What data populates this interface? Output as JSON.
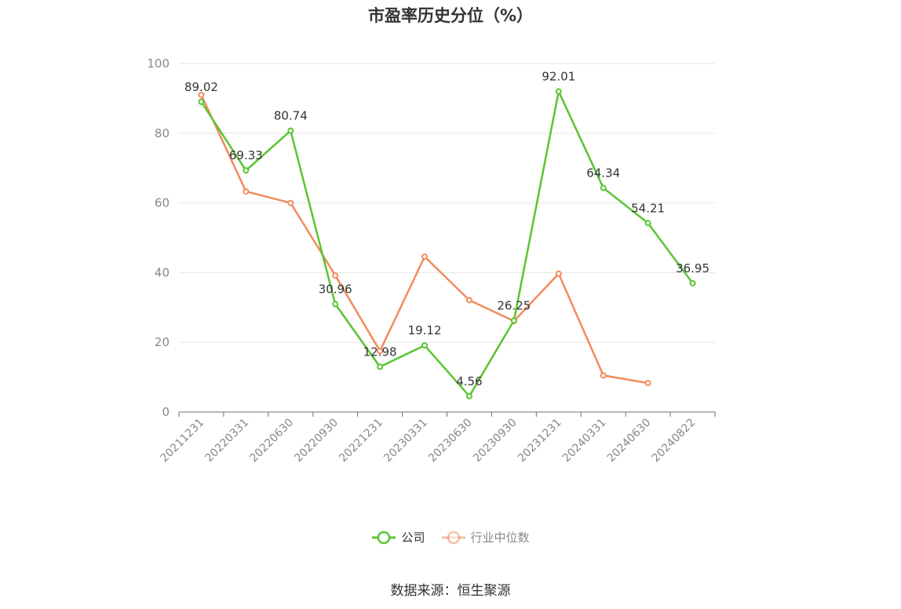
{
  "chart_data": {
    "type": "line",
    "title": "市盈率历史分位（%）",
    "categories": [
      "20211231",
      "20220331",
      "20220630",
      "20220930",
      "20221231",
      "20230331",
      "20230630",
      "20230930",
      "20231231",
      "20240331",
      "20240630",
      "20240822"
    ],
    "series": [
      {
        "name": "公司",
        "color": "#5ac530",
        "values": [
          89.02,
          69.33,
          80.74,
          30.96,
          12.98,
          19.12,
          4.56,
          26.25,
          92.01,
          64.34,
          54.21,
          36.95
        ],
        "labels": [
          "89.02",
          "69.33",
          "80.74",
          "30.96",
          "12.98",
          "19.12",
          "4.56",
          "26.25",
          "92.01",
          "64.34",
          "54.21",
          "36.95"
        ]
      },
      {
        "name": "行业中位数",
        "color": "#f28b5c",
        "values": [
          91.0,
          63.3,
          60.0,
          39.2,
          17.5,
          44.6,
          32.1,
          26.1,
          39.7,
          10.5,
          8.3,
          null
        ]
      }
    ],
    "ylim": [
      0,
      100
    ],
    "yticks": [
      0,
      20,
      40,
      60,
      80,
      100
    ],
    "grid": true,
    "legend_position": "bottom"
  },
  "source": "数据来源：恒生聚源"
}
